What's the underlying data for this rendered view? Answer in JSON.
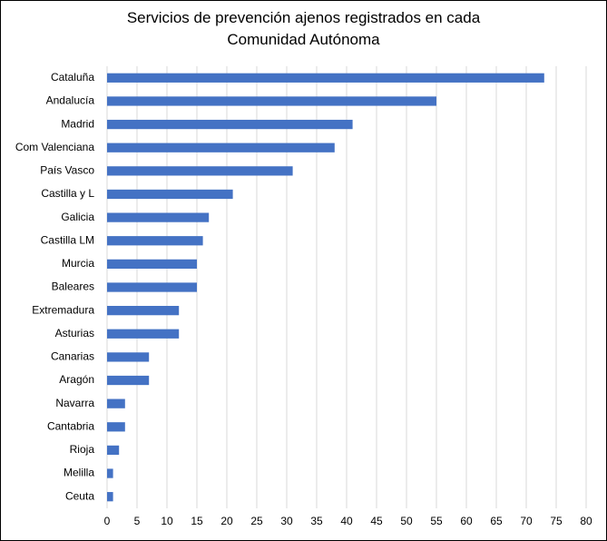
{
  "chart_data": {
    "type": "bar",
    "orientation": "horizontal",
    "title_lines": [
      "Servicios de prevención ajenos registrados en cada",
      "Comunidad Autónoma"
    ],
    "categories": [
      "Cataluña",
      "Andalucía",
      "Madrid",
      "Com Valenciana",
      "País Vasco",
      "Castilla y L",
      "Galicia",
      "Castilla LM",
      "Murcia",
      "Baleares",
      "Extremadura",
      "Asturias",
      "Canarias",
      "Aragón",
      "Navarra",
      "Cantabria",
      "Rioja",
      "Melilla",
      "Ceuta"
    ],
    "values": [
      73,
      55,
      41,
      38,
      31,
      21,
      17,
      16,
      15,
      15,
      12,
      12,
      7,
      7,
      3,
      3,
      2,
      1,
      1
    ],
    "xlim": [
      0,
      80
    ],
    "xticks": [
      "0",
      "5",
      "10",
      "15",
      "20",
      "25",
      "30",
      "35",
      "40",
      "45",
      "50",
      "55",
      "60",
      "65",
      "70",
      "75",
      "80"
    ],
    "grid": "vertical",
    "legend": "none",
    "bar_color": "#4472C4",
    "grid_color": "#D9D9D9"
  }
}
